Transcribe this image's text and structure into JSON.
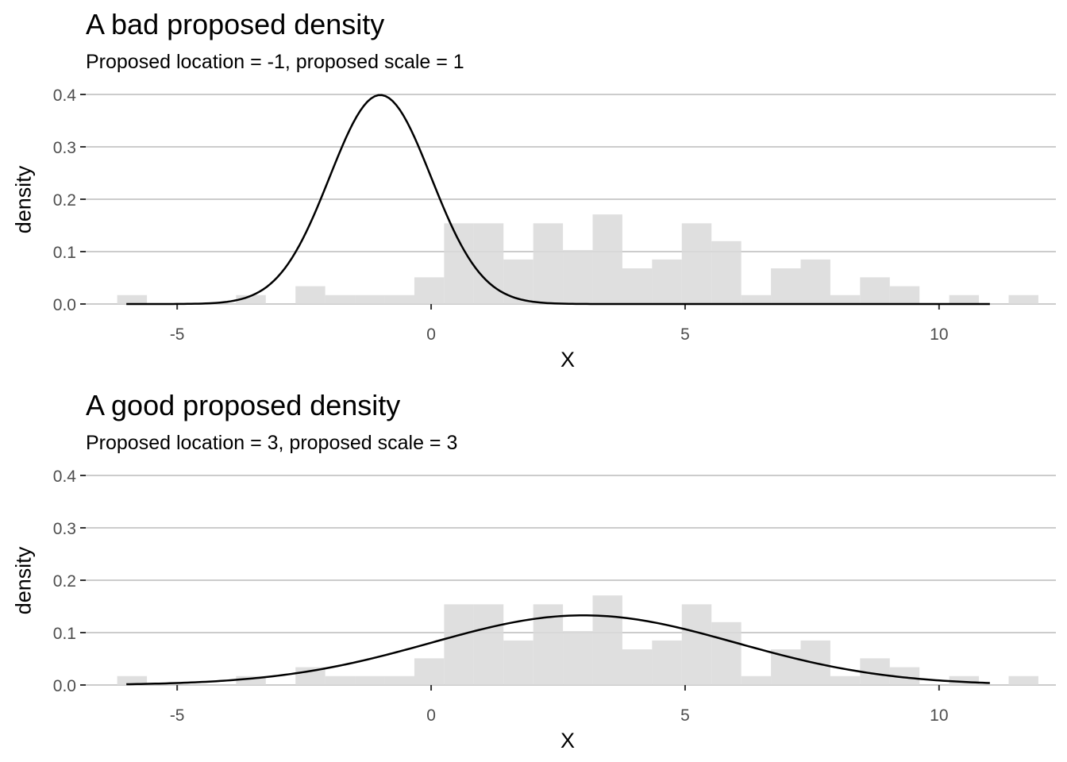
{
  "chart_data": [
    {
      "type": "histogram",
      "title": "A bad proposed density",
      "subtitle": "Proposed location = -1, proposed scale = 1",
      "xlabel": "X",
      "ylabel": "density",
      "xlim": [
        -6.8,
        12.3
      ],
      "ylim": [
        0,
        0.4
      ],
      "x_ticks": [
        -5,
        0,
        5,
        10
      ],
      "y_ticks": [
        0.0,
        0.1,
        0.2,
        0.3,
        0.4
      ],
      "x_tick_labels": [
        "-5",
        "0",
        "5",
        "10"
      ],
      "y_tick_labels": [
        "0.0",
        "0.1",
        "0.2",
        "0.3",
        "0.4"
      ],
      "grid": "horizontal",
      "histogram": {
        "bin_start": -6.18,
        "bin_width": 0.585,
        "densities": [
          0.017,
          0,
          0,
          0,
          0.017,
          0,
          0.034,
          0.017,
          0.017,
          0.017,
          0.051,
          0.154,
          0.154,
          0.085,
          0.154,
          0.103,
          0.171,
          0.068,
          0.085,
          0.154,
          0.12,
          0.017,
          0.068,
          0.085,
          0.017,
          0.051,
          0.034,
          0,
          0.017,
          0,
          0.017
        ],
        "color": "#d9d9d9"
      },
      "curve": {
        "distribution": "normal",
        "location": -1,
        "scale": 1,
        "x_range": [
          -6,
          11
        ],
        "color": "#000000"
      }
    },
    {
      "type": "histogram",
      "title": "A good proposed density",
      "subtitle": "Proposed location = 3, proposed scale = 3",
      "xlabel": "X",
      "ylabel": "density",
      "xlim": [
        -6.8,
        12.3
      ],
      "ylim": [
        0,
        0.4
      ],
      "x_ticks": [
        -5,
        0,
        5,
        10
      ],
      "y_ticks": [
        0.0,
        0.1,
        0.2,
        0.3,
        0.4
      ],
      "x_tick_labels": [
        "-5",
        "0",
        "5",
        "10"
      ],
      "y_tick_labels": [
        "0.0",
        "0.1",
        "0.2",
        "0.3",
        "0.4"
      ],
      "grid": "horizontal",
      "histogram": {
        "bin_start": -6.18,
        "bin_width": 0.585,
        "densities": [
          0.017,
          0,
          0,
          0,
          0.017,
          0,
          0.034,
          0.017,
          0.017,
          0.017,
          0.051,
          0.154,
          0.154,
          0.085,
          0.154,
          0.103,
          0.171,
          0.068,
          0.085,
          0.154,
          0.12,
          0.017,
          0.068,
          0.085,
          0.017,
          0.051,
          0.034,
          0,
          0.017,
          0,
          0.017
        ],
        "color": "#d9d9d9"
      },
      "curve": {
        "distribution": "normal",
        "location": 3,
        "scale": 3,
        "x_range": [
          -6,
          11
        ],
        "color": "#000000"
      }
    }
  ]
}
